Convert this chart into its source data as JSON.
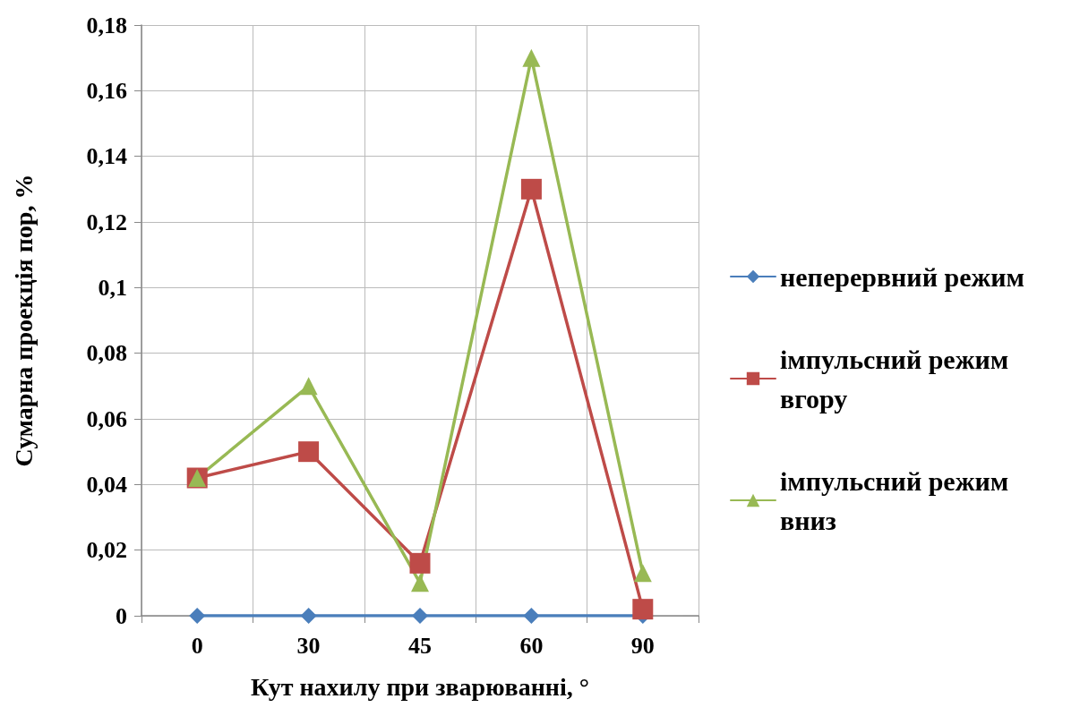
{
  "chart_data": {
    "type": "line",
    "xlabel": "Кут нахилу при зварюванні, °",
    "ylabel": "Сумарна проекція пор, %",
    "categories": [
      "0",
      "30",
      "45",
      "60",
      "90"
    ],
    "series": [
      {
        "name": "неперервний режим",
        "color": "#4a7ebb",
        "marker": "diamond",
        "values": [
          0,
          0,
          0,
          0,
          0
        ]
      },
      {
        "name": "імпульсний режим вгору",
        "color": "#be4b48",
        "marker": "square",
        "values": [
          0.042,
          0.05,
          0.016,
          0.13,
          0.002
        ]
      },
      {
        "name": "імпульсний режим вниз",
        "color": "#98b954",
        "marker": "triangle",
        "values": [
          0.042,
          0.07,
          0.01,
          0.17,
          0.013
        ]
      }
    ],
    "ylim": [
      0,
      0.18
    ],
    "yticks": [
      0,
      {
        "value": 0.02,
        "label": "0,02"
      },
      {
        "value": 0.04,
        "label": "0,04"
      },
      {
        "value": 0.06,
        "label": "0,06"
      },
      {
        "value": 0.08,
        "label": "0,08"
      },
      {
        "value": 0.1,
        "label": "0,1"
      },
      {
        "value": 0.12,
        "label": "0,12"
      },
      {
        "value": 0.14,
        "label": "0,14"
      },
      {
        "value": 0.16,
        "label": "0,16"
      },
      {
        "value": 0.18,
        "label": "0,18"
      }
    ],
    "grid": true,
    "legend": "right",
    "line_style": "solid"
  }
}
